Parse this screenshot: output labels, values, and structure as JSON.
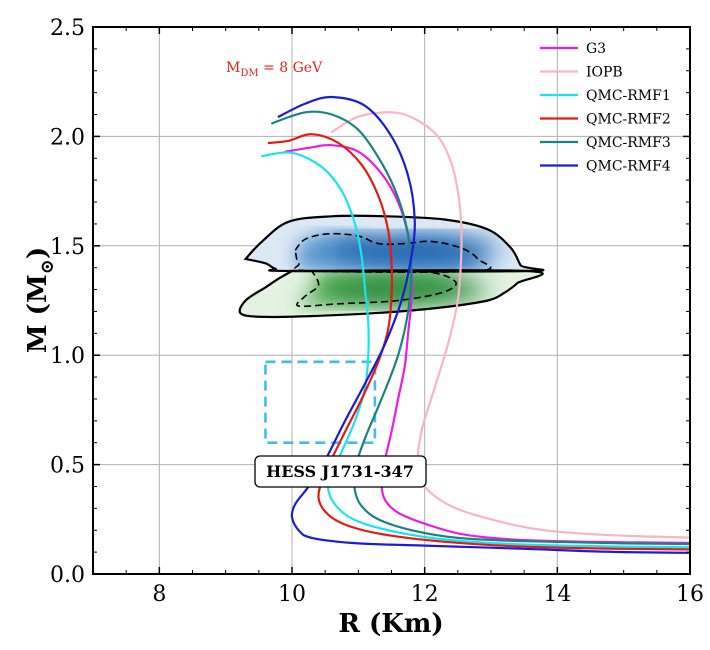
{
  "chart_data": {
    "type": "line",
    "xlabel": "R (Km)",
    "ylabel_main": "M (M",
    "ylabel_sub": "⊙",
    "ylabel_close": ")",
    "xlim": [
      7,
      16
    ],
    "ylim": [
      0,
      2.5
    ],
    "xticks": [
      8,
      10,
      12,
      14,
      16
    ],
    "yticks": [
      0.0,
      0.5,
      1.0,
      1.5,
      2.0,
      2.5
    ],
    "xtick_labels": [
      "8",
      "10",
      "12",
      "14",
      "16"
    ],
    "ytick_labels": [
      "0.0",
      "0.5",
      "1.0",
      "1.5",
      "2.0",
      "2.5"
    ],
    "grid": true,
    "legend_position": "top-right",
    "annotation": {
      "main": "M",
      "sub": "DM",
      "rest": " = 8 GeV",
      "x": 8.95,
      "y": 2.37
    },
    "hess_label": {
      "text": "HESS J1731-347",
      "x": 10.35,
      "y": 0.48
    },
    "hess_box": {
      "x": [
        9.6,
        11.25
      ],
      "y": [
        0.6,
        0.97
      ]
    },
    "posterior_upper": {
      "outline": [
        [
          9.3,
          1.44
        ],
        [
          9.55,
          1.52
        ],
        [
          9.95,
          1.61
        ],
        [
          10.6,
          1.635
        ],
        [
          11.4,
          1.635
        ],
        [
          12.3,
          1.62
        ],
        [
          12.95,
          1.575
        ],
        [
          13.3,
          1.49
        ],
        [
          13.45,
          1.41
        ],
        [
          13.55,
          1.385
        ],
        [
          10.0,
          1.385
        ],
        [
          9.75,
          1.395
        ],
        [
          9.6,
          1.42
        ]
      ],
      "inner": [
        [
          10.05,
          1.48
        ],
        [
          10.2,
          1.53
        ],
        [
          10.55,
          1.555
        ],
        [
          11.0,
          1.545
        ],
        [
          11.3,
          1.51
        ],
        [
          11.7,
          1.51
        ],
        [
          12.1,
          1.52
        ],
        [
          12.55,
          1.49
        ],
        [
          12.8,
          1.44
        ],
        [
          12.8,
          1.385
        ],
        [
          10.3,
          1.385
        ],
        [
          10.1,
          1.42
        ]
      ],
      "color": "#1f64ad"
    },
    "posterior_lower": {
      "outline": [
        [
          10.0,
          1.385
        ],
        [
          13.55,
          1.385
        ],
        [
          13.4,
          1.33
        ],
        [
          13.2,
          1.285
        ],
        [
          12.95,
          1.25
        ],
        [
          12.3,
          1.22
        ],
        [
          11.4,
          1.195
        ],
        [
          10.4,
          1.18
        ],
        [
          9.6,
          1.175
        ],
        [
          9.23,
          1.19
        ],
        [
          9.3,
          1.25
        ],
        [
          9.6,
          1.31
        ],
        [
          9.8,
          1.35
        ]
      ],
      "inner": [
        [
          10.3,
          1.385
        ],
        [
          11.9,
          1.385
        ],
        [
          12.45,
          1.34
        ],
        [
          12.3,
          1.29
        ],
        [
          11.6,
          1.25
        ],
        [
          10.7,
          1.235
        ],
        [
          10.1,
          1.225
        ],
        [
          10.2,
          1.27
        ],
        [
          10.4,
          1.32
        ]
      ],
      "color": "#2c8b3d"
    },
    "series": [
      {
        "name": "G3",
        "color": "#e81ce3",
        "points": [
          [
            17.0,
            0.14
          ],
          [
            15.0,
            0.145
          ],
          [
            13.5,
            0.155
          ],
          [
            12.6,
            0.18
          ],
          [
            12.0,
            0.23
          ],
          [
            11.6,
            0.28
          ],
          [
            11.4,
            0.34
          ],
          [
            11.35,
            0.42
          ],
          [
            11.4,
            0.52
          ],
          [
            11.5,
            0.65
          ],
          [
            11.6,
            0.8
          ],
          [
            11.7,
            0.95
          ],
          [
            11.75,
            1.1
          ],
          [
            11.8,
            1.25
          ],
          [
            11.8,
            1.4
          ],
          [
            11.75,
            1.55
          ],
          [
            11.6,
            1.7
          ],
          [
            11.35,
            1.83
          ],
          [
            11.0,
            1.93
          ],
          [
            10.6,
            1.96
          ],
          [
            10.3,
            1.95
          ],
          [
            9.9,
            1.93
          ]
        ]
      },
      {
        "name": "IOPB",
        "color": "#f7b6c1",
        "points": [
          [
            17.0,
            0.16
          ],
          [
            15.0,
            0.175
          ],
          [
            13.8,
            0.2
          ],
          [
            13.0,
            0.25
          ],
          [
            12.4,
            0.31
          ],
          [
            12.0,
            0.4
          ],
          [
            11.9,
            0.5
          ],
          [
            11.95,
            0.65
          ],
          [
            12.15,
            0.85
          ],
          [
            12.35,
            1.05
          ],
          [
            12.5,
            1.25
          ],
          [
            12.55,
            1.45
          ],
          [
            12.55,
            1.6
          ],
          [
            12.5,
            1.75
          ],
          [
            12.4,
            1.88
          ],
          [
            12.2,
            2.0
          ],
          [
            11.85,
            2.08
          ],
          [
            11.5,
            2.11
          ],
          [
            11.0,
            2.09
          ],
          [
            10.6,
            2.02
          ]
        ]
      },
      {
        "name": "QMC-RMF1",
        "color": "#19e4ee",
        "points": [
          [
            17.0,
            0.12
          ],
          [
            15.0,
            0.125
          ],
          [
            13.5,
            0.135
          ],
          [
            12.4,
            0.155
          ],
          [
            11.6,
            0.19
          ],
          [
            11.0,
            0.24
          ],
          [
            10.7,
            0.3
          ],
          [
            10.55,
            0.38
          ],
          [
            10.6,
            0.46
          ],
          [
            10.75,
            0.56
          ],
          [
            10.95,
            0.7
          ],
          [
            11.1,
            0.85
          ],
          [
            11.15,
            1.0
          ],
          [
            11.15,
            1.15
          ],
          [
            11.1,
            1.3
          ],
          [
            11.05,
            1.45
          ],
          [
            10.95,
            1.6
          ],
          [
            10.75,
            1.75
          ],
          [
            10.45,
            1.86
          ],
          [
            10.0,
            1.925
          ],
          [
            9.55,
            1.91
          ]
        ]
      },
      {
        "name": "QMC-RMF2",
        "color": "#e51a15",
        "points": [
          [
            17.0,
            0.11
          ],
          [
            15.0,
            0.115
          ],
          [
            13.5,
            0.125
          ],
          [
            12.4,
            0.145
          ],
          [
            11.5,
            0.175
          ],
          [
            10.9,
            0.215
          ],
          [
            10.55,
            0.27
          ],
          [
            10.4,
            0.35
          ],
          [
            10.5,
            0.46
          ],
          [
            10.75,
            0.62
          ],
          [
            11.05,
            0.8
          ],
          [
            11.3,
            0.97
          ],
          [
            11.45,
            1.12
          ],
          [
            11.5,
            1.27
          ],
          [
            11.5,
            1.42
          ],
          [
            11.45,
            1.57
          ],
          [
            11.3,
            1.73
          ],
          [
            11.05,
            1.87
          ],
          [
            10.7,
            1.97
          ],
          [
            10.3,
            2.01
          ],
          [
            9.95,
            1.98
          ],
          [
            9.65,
            1.97
          ]
        ]
      },
      {
        "name": "QMC-RMF3",
        "color": "#1a8382",
        "points": [
          [
            17.0,
            0.135
          ],
          [
            15.0,
            0.14
          ],
          [
            13.5,
            0.15
          ],
          [
            12.5,
            0.165
          ],
          [
            11.8,
            0.2
          ],
          [
            11.3,
            0.25
          ],
          [
            11.05,
            0.31
          ],
          [
            10.95,
            0.38
          ],
          [
            10.95,
            0.48
          ],
          [
            11.1,
            0.62
          ],
          [
            11.35,
            0.8
          ],
          [
            11.6,
            1.0
          ],
          [
            11.75,
            1.2
          ],
          [
            11.8,
            1.4
          ],
          [
            11.75,
            1.55
          ],
          [
            11.6,
            1.72
          ],
          [
            11.35,
            1.88
          ],
          [
            11.0,
            2.03
          ],
          [
            10.6,
            2.1
          ],
          [
            10.2,
            2.11
          ],
          [
            9.7,
            2.06
          ]
        ]
      },
      {
        "name": "QMC-RMF4",
        "color": "#1b1dd3",
        "points": [
          [
            17.0,
            0.095
          ],
          [
            15.0,
            0.1
          ],
          [
            13.5,
            0.115
          ],
          [
            12.0,
            0.13
          ],
          [
            11.0,
            0.14
          ],
          [
            10.3,
            0.165
          ],
          [
            10.1,
            0.2
          ],
          [
            10.0,
            0.26
          ],
          [
            10.05,
            0.32
          ],
          [
            10.25,
            0.4
          ],
          [
            10.5,
            0.52
          ],
          [
            10.8,
            0.7
          ],
          [
            11.1,
            0.87
          ],
          [
            11.4,
            1.05
          ],
          [
            11.65,
            1.25
          ],
          [
            11.8,
            1.45
          ],
          [
            11.85,
            1.62
          ],
          [
            11.75,
            1.82
          ],
          [
            11.5,
            2.0
          ],
          [
            11.1,
            2.14
          ],
          [
            10.6,
            2.18
          ],
          [
            10.2,
            2.15
          ],
          [
            9.8,
            2.09
          ]
        ]
      }
    ]
  }
}
